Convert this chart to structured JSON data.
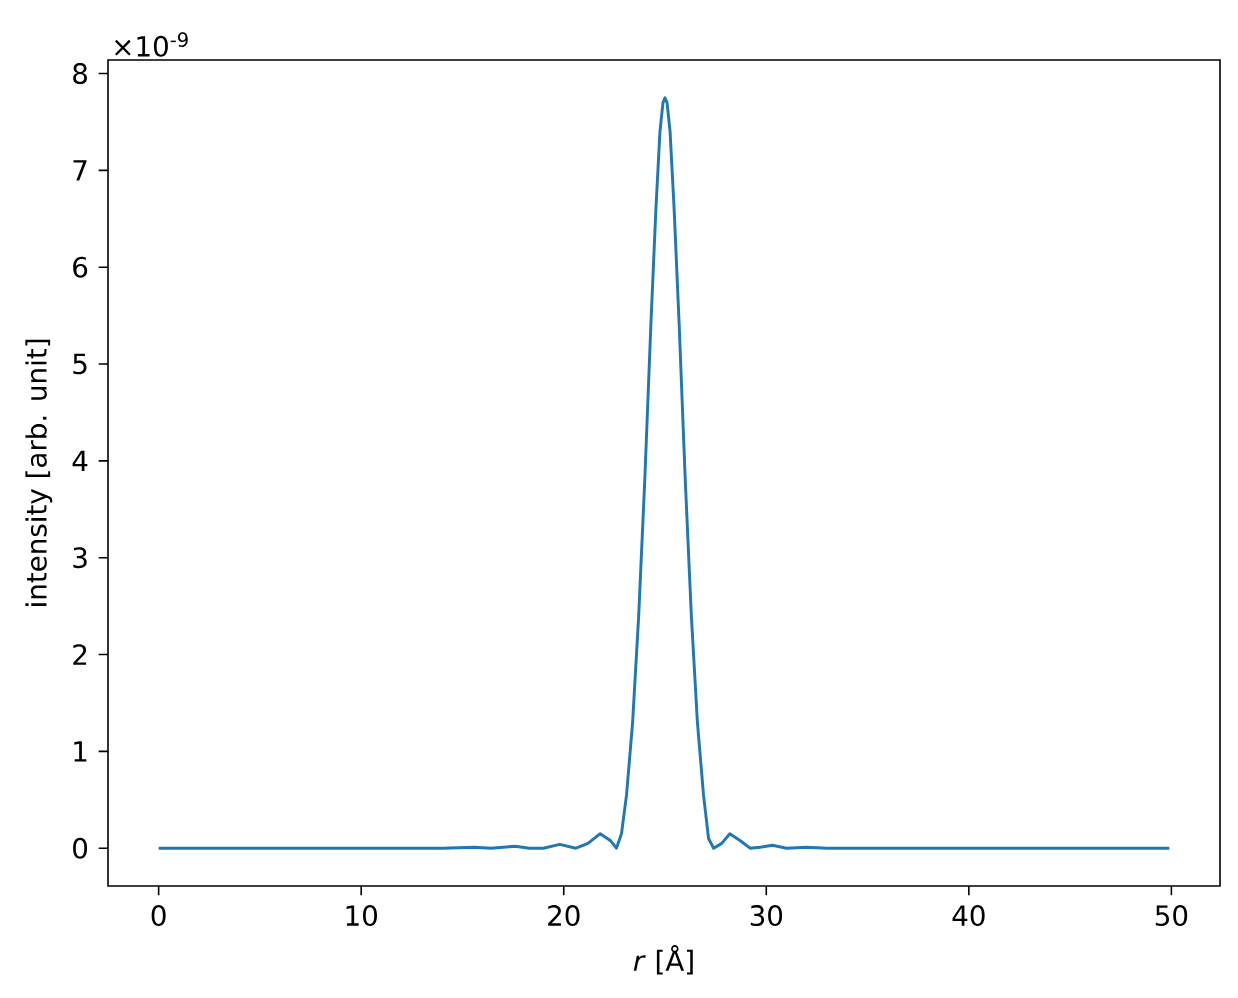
{
  "chart_data": {
    "type": "line",
    "xlabel": "*r* [Å]",
    "ylabel": "intensity [arb. unit]",
    "annotations": [
      "×10$^{-9}$"
    ],
    "xlim": [
      -2.5,
      52.4
    ],
    "ylim": [
      -0.39,
      8.14
    ],
    "xticks": [
      0,
      10,
      20,
      30,
      40,
      50
    ],
    "yticks": [
      0,
      1,
      2,
      3,
      4,
      5,
      6,
      7,
      8
    ],
    "grid": false,
    "series": [
      {
        "color": "#1f77b4",
        "x": [
          0,
          10,
          14,
          15.6,
          16.4,
          17.0,
          17.6,
          18.3,
          19.0,
          19.8,
          20.6,
          21.2,
          21.8,
          22.3,
          22.6,
          22.85,
          23.1,
          23.4,
          23.7,
          24.0,
          24.3,
          24.55,
          24.75,
          24.9,
          25.0,
          25.1,
          25.25,
          25.45,
          25.7,
          26.0,
          26.3,
          26.6,
          26.9,
          27.15,
          27.4,
          27.8,
          28.2,
          28.7,
          29.2,
          29.7,
          30.3,
          31.0,
          32,
          33,
          35,
          40,
          49.9
        ],
        "values": [
          0,
          0,
          0,
          0.01,
          0.0,
          0.01,
          0.02,
          0.0,
          0.0,
          0.04,
          0.0,
          0.05,
          0.15,
          0.08,
          0.0,
          0.15,
          0.55,
          1.3,
          2.4,
          3.8,
          5.4,
          6.6,
          7.4,
          7.7,
          7.75,
          7.7,
          7.4,
          6.6,
          5.4,
          3.8,
          2.4,
          1.3,
          0.55,
          0.1,
          0.0,
          0.05,
          0.15,
          0.08,
          0.0,
          0.01,
          0.03,
          0.0,
          0.01,
          0.0,
          0.0,
          0,
          0
        ]
      }
    ]
  }
}
